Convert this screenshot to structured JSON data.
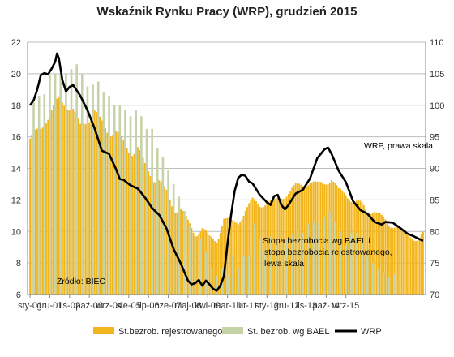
{
  "chart_data": {
    "type": "bar",
    "title": "Wskaźnik Rynku Pracy (WRP), grudzień 2015",
    "x_tick_labels": [
      "sty-01",
      "gru-01",
      "lis-02",
      "paź-03",
      "wrz-04",
      "sie-05",
      "lip-06",
      "cze-07",
      "maj-08",
      "kwi-09",
      "mar-10",
      "lut-11",
      "sty-12",
      "gru-12",
      "lis-13",
      "paź-14",
      "wrz-15"
    ],
    "y_left": {
      "min": 6,
      "max": 22,
      "ticks": [
        6,
        8,
        10,
        12,
        14,
        16,
        18,
        20,
        22
      ]
    },
    "y_right": {
      "min": 70,
      "max": 110,
      "ticks": [
        70,
        75,
        80,
        85,
        90,
        95,
        100,
        105,
        110
      ]
    },
    "grid": true,
    "legend_position": "bottom",
    "series": [
      {
        "name": "St.bezrob. rejestrowanego",
        "type": "bar",
        "axis": "left",
        "color": "#F2B51B",
        "anchors": [
          [
            0,
            15.9
          ],
          [
            6,
            16.5
          ],
          [
            11,
            17.5
          ],
          [
            13,
            17.9
          ],
          [
            16,
            18.3
          ],
          [
            20,
            18.0
          ],
          [
            24,
            17.8
          ],
          [
            28,
            16.6
          ],
          [
            32,
            17.0
          ],
          [
            36,
            17.7
          ],
          [
            40,
            16.8
          ],
          [
            44,
            16.2
          ],
          [
            48,
            16.4
          ],
          [
            52,
            15.6
          ],
          [
            56,
            14.9
          ],
          [
            60,
            15.4
          ],
          [
            64,
            14.1
          ],
          [
            68,
            13.4
          ],
          [
            72,
            13.3
          ],
          [
            76,
            12.4
          ],
          [
            80,
            11.4
          ],
          [
            84,
            11.5
          ],
          [
            88,
            10.5
          ],
          [
            92,
            9.8
          ],
          [
            96,
            10.3
          ],
          [
            100,
            9.5
          ],
          [
            104,
            9.4
          ],
          [
            108,
            10.9
          ],
          [
            112,
            10.5
          ],
          [
            116,
            10.6
          ],
          [
            120,
            11.4
          ],
          [
            124,
            11.9
          ],
          [
            128,
            11.7
          ],
          [
            132,
            11.9
          ],
          [
            136,
            11.8
          ],
          [
            140,
            12.2
          ],
          [
            144,
            12.5
          ],
          [
            148,
            12.8
          ],
          [
            152,
            13.0
          ],
          [
            156,
            13.2
          ],
          [
            160,
            12.9
          ],
          [
            164,
            13.1
          ],
          [
            168,
            13.4
          ],
          [
            172,
            12.5
          ],
          [
            176,
            12.4
          ],
          [
            180,
            12.0
          ],
          [
            184,
            11.7
          ],
          [
            188,
            11.3
          ],
          [
            192,
            11.4
          ],
          [
            196,
            10.8
          ],
          [
            200,
            10.4
          ],
          [
            204,
            10.5
          ],
          [
            208,
            9.9
          ],
          [
            212,
            9.7
          ],
          [
            216,
            9.6
          ],
          [
            219,
            9.8
          ]
        ]
      },
      {
        "name": "St. bezrob. wg BAEL",
        "type": "bar",
        "axis": "left",
        "color": "#C6D2A8",
        "quarterly": [
          18.2,
          18.6,
          18.7,
          19.9,
          20.0,
          20.0,
          20.0,
          20.3,
          20.6,
          20.0,
          19.2,
          19.3,
          19.5,
          18.8,
          18.6,
          18.0,
          18.0,
          17.7,
          17.3,
          17.7,
          17.3,
          16.5,
          16.5,
          15.3,
          14.7,
          13.9,
          13.0,
          12.2,
          11.3,
          10.4,
          9.7,
          9.5,
          8.7,
          7.7,
          7.2,
          7.7,
          7.1,
          8.5,
          7.7,
          8.4,
          8.5,
          10.5,
          9.5,
          8.8,
          9.7,
          9.6,
          9.3,
          9.5,
          9.8,
          10.1,
          9.9,
          10.5,
          10.6,
          10.5,
          10.9,
          11.3,
          10.6,
          10.0,
          9.1,
          9.9,
          9.9,
          9.7,
          8.4,
          8.0,
          7.6,
          7.4,
          7.1,
          7.3
        ]
      },
      {
        "name": "WRP",
        "type": "line",
        "axis": "right",
        "color": "#000000",
        "anchors": [
          [
            0,
            100.0
          ],
          [
            2,
            100.8
          ],
          [
            4,
            102.5
          ],
          [
            6,
            104.8
          ],
          [
            8,
            105.1
          ],
          [
            10,
            104.9
          ],
          [
            12,
            105.8
          ],
          [
            14,
            106.9
          ],
          [
            15,
            108.2
          ],
          [
            16,
            107.5
          ],
          [
            18,
            104.0
          ],
          [
            20,
            102.2
          ],
          [
            22,
            102.9
          ],
          [
            24,
            103.2
          ],
          [
            28,
            101.5
          ],
          [
            32,
            99.2
          ],
          [
            36,
            96.3
          ],
          [
            40,
            92.8
          ],
          [
            44,
            92.3
          ],
          [
            48,
            89.8
          ],
          [
            50,
            88.3
          ],
          [
            52,
            88.2
          ],
          [
            56,
            87.3
          ],
          [
            60,
            86.8
          ],
          [
            64,
            85.4
          ],
          [
            68,
            83.7
          ],
          [
            72,
            82.6
          ],
          [
            76,
            80.5
          ],
          [
            80,
            77.2
          ],
          [
            84,
            74.9
          ],
          [
            88,
            72.2
          ],
          [
            90,
            71.6
          ],
          [
            92,
            71.8
          ],
          [
            94,
            72.3
          ],
          [
            96,
            71.4
          ],
          [
            98,
            72.2
          ],
          [
            100,
            71.6
          ],
          [
            102,
            70.9
          ],
          [
            104,
            70.6
          ],
          [
            106,
            71.4
          ],
          [
            108,
            72.9
          ],
          [
            110,
            78.0
          ],
          [
            112,
            82.6
          ],
          [
            114,
            86.4
          ],
          [
            116,
            88.5
          ],
          [
            118,
            89.0
          ],
          [
            120,
            88.8
          ],
          [
            122,
            87.9
          ],
          [
            124,
            87.6
          ],
          [
            128,
            85.8
          ],
          [
            132,
            84.6
          ],
          [
            134,
            84.2
          ],
          [
            136,
            85.6
          ],
          [
            138,
            85.8
          ],
          [
            140,
            84.2
          ],
          [
            142,
            83.5
          ],
          [
            144,
            84.2
          ],
          [
            148,
            86.0
          ],
          [
            152,
            86.6
          ],
          [
            156,
            88.4
          ],
          [
            160,
            91.6
          ],
          [
            164,
            93.0
          ],
          [
            166,
            93.3
          ],
          [
            168,
            92.3
          ],
          [
            172,
            89.6
          ],
          [
            176,
            87.8
          ],
          [
            180,
            84.8
          ],
          [
            184,
            83.4
          ],
          [
            188,
            82.8
          ],
          [
            192,
            81.5
          ],
          [
            196,
            81.1
          ],
          [
            198,
            81.5
          ],
          [
            202,
            81.4
          ],
          [
            206,
            80.6
          ],
          [
            210,
            79.7
          ],
          [
            214,
            79.2
          ],
          [
            219,
            78.5
          ]
        ]
      }
    ],
    "annotations": {
      "source": "Źródło: BIEC",
      "wrp_label": "WRP, prawa skala",
      "left_scale_lines": [
        "Stopa bezrobocia wg BAEL i",
        "stopa bezrobocia rejestrowanego,",
        "lewa skala"
      ]
    }
  }
}
